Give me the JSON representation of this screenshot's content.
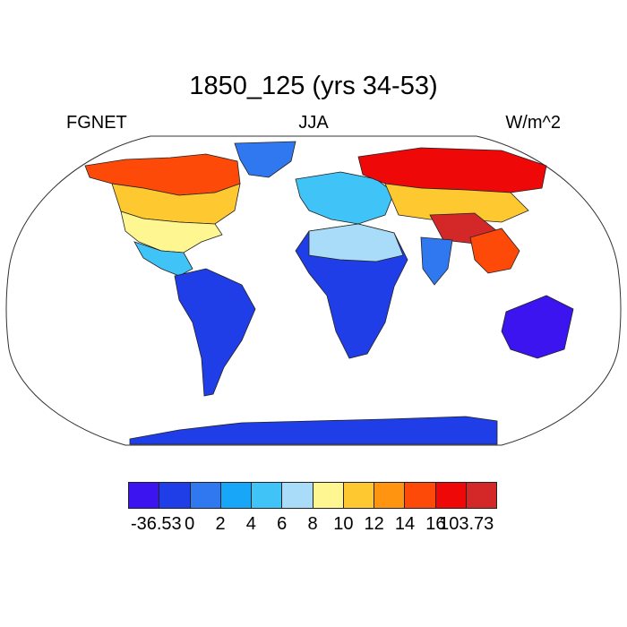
{
  "title": "1850_125 (yrs 34-53)",
  "left_label": "FGNET",
  "center_label": "JJA",
  "right_label": "W/m^2",
  "colorbar": {
    "colors": [
      "#3b14f0",
      "#1f3ee8",
      "#2f78f0",
      "#18a6f8",
      "#40c4f8",
      "#a8dcf8",
      "#fef690",
      "#fec830",
      "#fe9410",
      "#fe4a08",
      "#ee0808",
      "#d42828"
    ],
    "labels": [
      "-36.53",
      "0",
      "2",
      "4",
      "6",
      "8",
      "10",
      "12",
      "14",
      "16",
      "103.73"
    ]
  },
  "map": {
    "projection": "Robinson",
    "background": "#ffffff",
    "regions": [
      {
        "name": "North America Arctic",
        "color": "#fe4a08"
      },
      {
        "name": "Canada",
        "color": "#fec830"
      },
      {
        "name": "United States",
        "color": "#fef690"
      },
      {
        "name": "Mexico",
        "color": "#40c4f8"
      },
      {
        "name": "Greenland",
        "color": "#2f78f0"
      },
      {
        "name": "South America",
        "color": "#1f3ee8"
      },
      {
        "name": "Europe",
        "color": "#40c4f8"
      },
      {
        "name": "Siberia",
        "color": "#ee0808"
      },
      {
        "name": "Central Asia",
        "color": "#fec830"
      },
      {
        "name": "Tibet",
        "color": "#d42828"
      },
      {
        "name": "India",
        "color": "#2f78f0"
      },
      {
        "name": "Southeast Asia",
        "color": "#fe4a08"
      },
      {
        "name": "Africa",
        "color": "#1f3ee8"
      },
      {
        "name": "Sahara",
        "color": "#a8dcf8"
      },
      {
        "name": "Australia",
        "color": "#3b14f0"
      },
      {
        "name": "Antarctica",
        "color": "#1f3ee8"
      }
    ]
  }
}
